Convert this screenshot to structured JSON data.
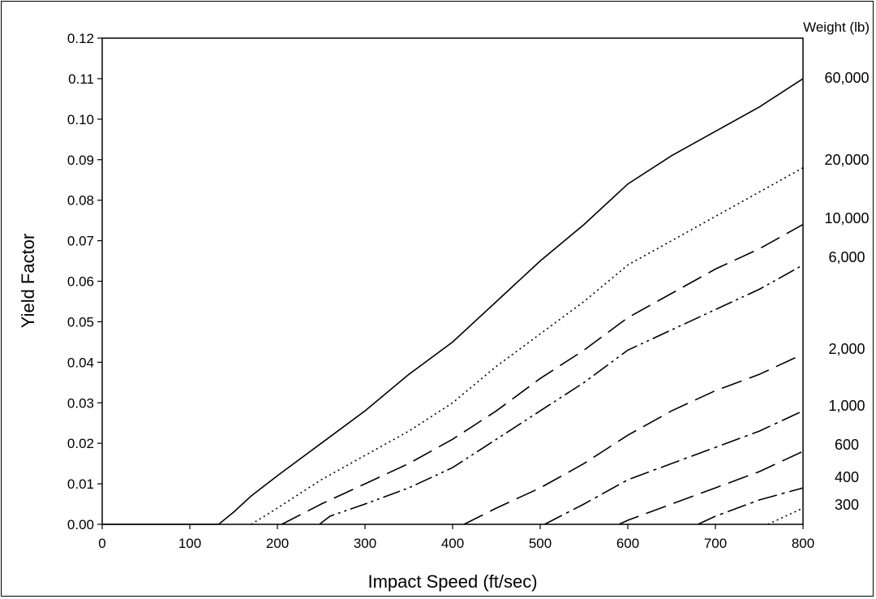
{
  "chart_data": {
    "type": "line",
    "title": "",
    "xlabel": "Impact Speed (ft/sec)",
    "ylabel": "Yield Factor",
    "xlim": [
      0,
      800
    ],
    "ylim": [
      0,
      0.12
    ],
    "xticks": [
      "0",
      "100",
      "200",
      "300",
      "400",
      "500",
      "600",
      "700",
      "800"
    ],
    "yticks": [
      "0.00",
      "0.01",
      "0.02",
      "0.03",
      "0.04",
      "0.05",
      "0.06",
      "0.07",
      "0.08",
      "0.09",
      "0.10",
      "0.11",
      "0.12"
    ],
    "grid": false,
    "legend_title": "Weight (lb)",
    "legend_placement": "right, labels at line ends",
    "series": [
      {
        "name": "60,000",
        "style": "solid",
        "points": [
          [
            0,
            0
          ],
          [
            133,
            0
          ],
          [
            150,
            0.003
          ],
          [
            170,
            0.007
          ],
          [
            200,
            0.012
          ],
          [
            250,
            0.02
          ],
          [
            300,
            0.028
          ],
          [
            350,
            0.037
          ],
          [
            400,
            0.045
          ],
          [
            450,
            0.055
          ],
          [
            500,
            0.065
          ],
          [
            550,
            0.074
          ],
          [
            600,
            0.084
          ],
          [
            650,
            0.091
          ],
          [
            700,
            0.097
          ],
          [
            750,
            0.103
          ],
          [
            800,
            0.11
          ]
        ]
      },
      {
        "name": "20,000",
        "style": "dotted",
        "points": [
          [
            170,
            0
          ],
          [
            200,
            0.004
          ],
          [
            250,
            0.011
          ],
          [
            300,
            0.017
          ],
          [
            350,
            0.023
          ],
          [
            400,
            0.03
          ],
          [
            450,
            0.039
          ],
          [
            500,
            0.047
          ],
          [
            550,
            0.055
          ],
          [
            600,
            0.064
          ],
          [
            650,
            0.07
          ],
          [
            700,
            0.076
          ],
          [
            750,
            0.082
          ],
          [
            800,
            0.088
          ]
        ]
      },
      {
        "name": "10,000",
        "style": "long-dash",
        "points": [
          [
            205,
            0
          ],
          [
            250,
            0.005
          ],
          [
            300,
            0.01
          ],
          [
            350,
            0.015
          ],
          [
            400,
            0.021
          ],
          [
            450,
            0.028
          ],
          [
            500,
            0.036
          ],
          [
            550,
            0.043
          ],
          [
            600,
            0.051
          ],
          [
            650,
            0.057
          ],
          [
            700,
            0.063
          ],
          [
            750,
            0.068
          ],
          [
            800,
            0.074
          ]
        ]
      },
      {
        "name": "6,000",
        "style": "dash-dot-dot",
        "points": [
          [
            248,
            0
          ],
          [
            260,
            0.002
          ],
          [
            300,
            0.005
          ],
          [
            350,
            0.009
          ],
          [
            400,
            0.014
          ],
          [
            450,
            0.021
          ],
          [
            500,
            0.028
          ],
          [
            550,
            0.035
          ],
          [
            600,
            0.043
          ],
          [
            650,
            0.048
          ],
          [
            700,
            0.053
          ],
          [
            750,
            0.058
          ],
          [
            800,
            0.064
          ]
        ]
      },
      {
        "name": "2,000",
        "style": "long-dash",
        "points": [
          [
            413,
            0
          ],
          [
            450,
            0.004
          ],
          [
            500,
            0.009
          ],
          [
            550,
            0.015
          ],
          [
            600,
            0.022
          ],
          [
            650,
            0.028
          ],
          [
            700,
            0.033
          ],
          [
            750,
            0.037
          ],
          [
            800,
            0.042
          ]
        ]
      },
      {
        "name": "1,000",
        "style": "dash-dot",
        "points": [
          [
            505,
            0
          ],
          [
            550,
            0.005
          ],
          [
            600,
            0.011
          ],
          [
            650,
            0.015
          ],
          [
            700,
            0.019
          ],
          [
            750,
            0.023
          ],
          [
            800,
            0.028
          ]
        ]
      },
      {
        "name": "600",
        "style": "long-dash",
        "points": [
          [
            590,
            0
          ],
          [
            600,
            0.001
          ],
          [
            650,
            0.005
          ],
          [
            700,
            0.009
          ],
          [
            750,
            0.013
          ],
          [
            800,
            0.018
          ]
        ]
      },
      {
        "name": "400",
        "style": "dash-dot",
        "points": [
          [
            680,
            0
          ],
          [
            700,
            0.002
          ],
          [
            750,
            0.006
          ],
          [
            800,
            0.009
          ]
        ]
      },
      {
        "name": "300",
        "style": "dotted",
        "points": [
          [
            760,
            0
          ],
          [
            800,
            0.004
          ]
        ]
      }
    ]
  }
}
